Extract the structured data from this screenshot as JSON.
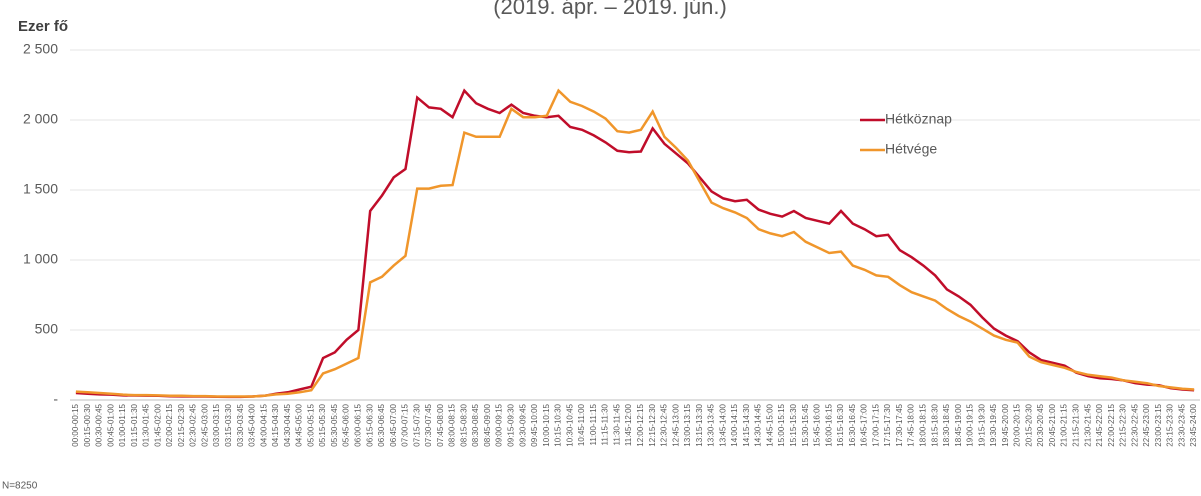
{
  "chart_data": {
    "type": "line",
    "title": "(2019. ápr. – 2019. jún.)",
    "y_label": "Ezer fő",
    "footnote": "N=8250",
    "categories": [
      "00:00-00:15",
      "00:15-00:30",
      "00:30-00:45",
      "00:45-01:00",
      "01:00-01:15",
      "01:15-01:30",
      "01:30-01:45",
      "01:45-02:00",
      "02:00-02:15",
      "02:15-02:30",
      "02:30-02:45",
      "02:45-03:00",
      "03:00-03:15",
      "03:15-03:30",
      "03:30-03:45",
      "03:45-04:00",
      "04:00-04:15",
      "04:15-04:30",
      "04:30-04:45",
      "04:45-05:00",
      "05:00-05:15",
      "05:15-05:30",
      "05:30-05:45",
      "05:45-06:00",
      "06:00-06:15",
      "06:15-06:30",
      "06:30-06:45",
      "06:45-07:00",
      "07:00-07:15",
      "07:15-07:30",
      "07:30-07:45",
      "07:45-08:00",
      "08:00-08:15",
      "08:15-08:30",
      "08:30-08:45",
      "08:45-09:00",
      "09:00-09:15",
      "09:15-09:30",
      "09:30-09:45",
      "09:45-10:00",
      "10:00-10:15",
      "10:15-10:30",
      "10:30-10:45",
      "10:45-11:00",
      "11:00-11:15",
      "11:15-11:30",
      "11:30-11:45",
      "11:45-12:00",
      "12:00-12:15",
      "12:15-12:30",
      "12:30-12:45",
      "12:45-13:00",
      "13:00-13:15",
      "13:15-13:30",
      "13:30-13:45",
      "13:45-14:00",
      "14:00-14:15",
      "14:15-14:30",
      "14:30-14:45",
      "14:45-15:00",
      "15:00-15:15",
      "15:15-15:30",
      "15:30-15:45",
      "15:45-16:00",
      "16:00-16:15",
      "16:15-16:30",
      "16:30-16:45",
      "16:45-17:00",
      "17:00-17:15",
      "17:15-17:30",
      "17:30-17:45",
      "17:45-18:00",
      "18:00-18:15",
      "18:15-18:30",
      "18:30-18:45",
      "18:45-19:00",
      "19:00-19:15",
      "19:15-19:30",
      "19:30-19:45",
      "19:45-20:00",
      "20:00-20:15",
      "20:15-20:30",
      "20:30-20:45",
      "20:45-21:00",
      "21:00-21:15",
      "21:15-21:30",
      "21:30-21:45",
      "21:45-22:00",
      "22:00-22:15",
      "22:15-22:30",
      "22:30-22:45",
      "22:45-23:00",
      "23:00-23:15",
      "23:15-23:30",
      "23:30-23:45",
      "23:45-24:00"
    ],
    "series": [
      {
        "name": "Hétköznap",
        "color": "#c00d2a",
        "values": [
          50,
          45,
          40,
          38,
          33,
          32,
          31,
          30,
          27,
          26,
          25,
          25,
          23,
          22,
          22,
          25,
          30,
          45,
          55,
          75,
          95,
          300,
          340,
          430,
          500,
          1350,
          1460,
          1590,
          1650,
          2160,
          2090,
          2080,
          2020,
          2210,
          2120,
          2080,
          2050,
          2110,
          2050,
          2030,
          2020,
          2030,
          1950,
          1930,
          1890,
          1840,
          1780,
          1770,
          1775,
          1940,
          1830,
          1760,
          1690,
          1590,
          1490,
          1440,
          1420,
          1430,
          1360,
          1330,
          1310,
          1350,
          1300,
          1280,
          1260,
          1350,
          1260,
          1220,
          1170,
          1180,
          1070,
          1020,
          960,
          890,
          790,
          740,
          680,
          590,
          510,
          460,
          420,
          340,
          285,
          265,
          245,
          195,
          170,
          155,
          150,
          140,
          120,
          110,
          105,
          85,
          75,
          70
        ]
      },
      {
        "name": "Hétvége",
        "color": "#f0962b",
        "values": [
          60,
          55,
          50,
          45,
          38,
          35,
          35,
          33,
          30,
          30,
          28,
          28,
          25,
          25,
          25,
          25,
          30,
          40,
          45,
          55,
          70,
          190,
          220,
          260,
          300,
          840,
          880,
          960,
          1030,
          1510,
          1510,
          1530,
          1535,
          1910,
          1880,
          1880,
          1880,
          2080,
          2020,
          2020,
          2030,
          2210,
          2130,
          2100,
          2060,
          2010,
          1920,
          1910,
          1930,
          2060,
          1880,
          1800,
          1710,
          1560,
          1410,
          1370,
          1340,
          1300,
          1220,
          1190,
          1170,
          1200,
          1130,
          1090,
          1050,
          1060,
          960,
          930,
          890,
          880,
          820,
          770,
          740,
          710,
          650,
          600,
          560,
          510,
          460,
          430,
          410,
          310,
          270,
          250,
          230,
          200,
          180,
          170,
          160,
          140,
          130,
          120,
          100,
          90,
          80,
          75
        ]
      }
    ],
    "ylim": [
      0,
      2500
    ],
    "yticks": [
      {
        "value": 0,
        "label": "-"
      },
      500,
      {
        "value": 1000,
        "label": "1 000"
      },
      {
        "value": 1500,
        "label": "1 500"
      },
      {
        "value": 2000,
        "label": "2 000"
      },
      {
        "value": 2500,
        "label": "2 500"
      }
    ],
    "grid": true,
    "legend": "right"
  }
}
